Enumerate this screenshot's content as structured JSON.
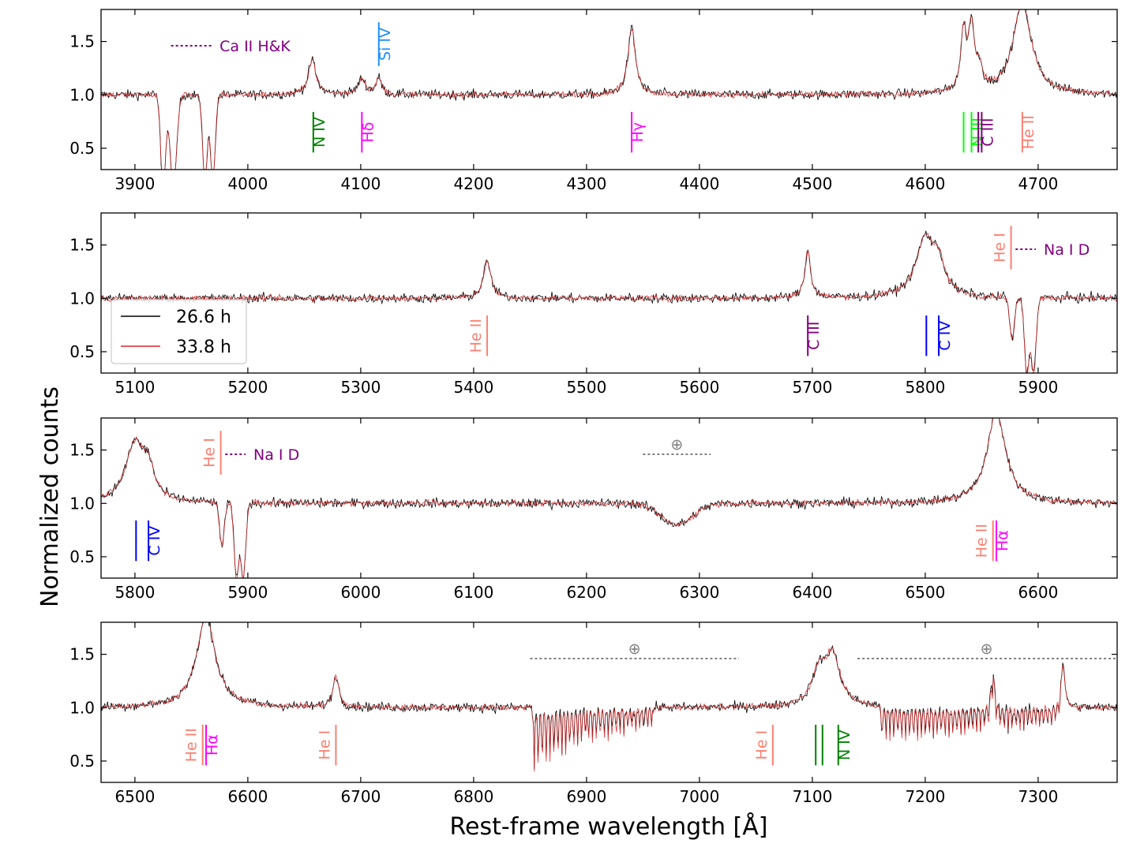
{
  "chart_data": {
    "type": "line",
    "xlabel": "Rest-frame wavelength [Å]",
    "ylabel": "Normalized counts",
    "legend": {
      "placement": "panel-2-left",
      "entries": [
        {
          "name": "26.6 h",
          "color": "#000000"
        },
        {
          "name": "33.8 h",
          "color": "#d62728"
        }
      ]
    },
    "ylim": [
      0.3,
      1.8
    ],
    "yticks": [
      0.5,
      1.0,
      1.5
    ],
    "ytick_labels": [
      "0.5",
      "1.0",
      "1.5"
    ],
    "panels": [
      {
        "xlim": [
          3870,
          4770
        ],
        "xticks": [
          3900,
          4000,
          4100,
          4200,
          4300,
          4400,
          4500,
          4600,
          4700
        ],
        "xtick_labels": [
          "3900",
          "4000",
          "4100",
          "4200",
          "4300",
          "4400",
          "4500",
          "4600",
          "4700"
        ],
        "emission": [
          [
            4057,
            0.33,
            4
          ],
          [
            4101,
            0.15,
            4
          ],
          [
            4116,
            0.15,
            3
          ],
          [
            4340,
            0.62,
            4
          ],
          [
            4634,
            0.55,
            3
          ],
          [
            4641,
            0.6,
            3
          ],
          [
            4648,
            0.2,
            3
          ],
          [
            4686,
            0.85,
            10
          ]
        ],
        "absorption": [
          [
            3925,
            0.9,
            3
          ],
          [
            3934,
            0.9,
            4
          ],
          [
            3962,
            0.8,
            3
          ],
          [
            3969,
            0.8,
            3
          ]
        ],
        "ions": [
          {
            "label": "N IV",
            "color": "#008000",
            "lines": [
              4058
            ],
            "y": [
              0.46,
              0.84
            ]
          },
          {
            "label": "Hδ",
            "color": "#ff00ff",
            "lines": [
              4101
            ],
            "y": [
              0.46,
              0.84
            ]
          },
          {
            "label": "Hγ",
            "color": "#ff00ff",
            "lines": [
              4340
            ],
            "y": [
              0.46,
              0.84
            ]
          },
          {
            "label": "N III",
            "color": "#00ff00",
            "lines": [
              4634,
              4641
            ],
            "y": [
              0.46,
              0.84
            ]
          },
          {
            "label": "C III",
            "color": "#800080",
            "lines": [
              4647,
              4650
            ],
            "y": [
              0.46,
              0.84
            ]
          },
          {
            "label": "He II",
            "color": "#fa8072",
            "lines": [
              4686
            ],
            "y": [
              0.46,
              0.84
            ]
          },
          {
            "label": "Si IV",
            "color": "#1e90ff",
            "lines": [
              4116
            ],
            "y": [
              1.27,
              1.68
            ]
          }
        ],
        "dotted": [
          {
            "label": "Ca II H&K",
            "color": "#800080",
            "x": [
              3932,
              3968
            ],
            "y": 1.46
          }
        ]
      },
      {
        "xlim": [
          5070,
          5970
        ],
        "xticks": [
          5100,
          5200,
          5300,
          5400,
          5500,
          5600,
          5700,
          5800,
          5900
        ],
        "xtick_labels": [
          "5100",
          "5200",
          "5300",
          "5400",
          "5500",
          "5600",
          "5700",
          "5800",
          "5900"
        ],
        "emission": [
          [
            5412,
            0.35,
            4
          ],
          [
            5696,
            0.45,
            3
          ],
          [
            5800,
            0.55,
            10
          ],
          [
            5812,
            0.25,
            6
          ]
        ],
        "absorption": [
          [
            5877,
            0.4,
            3
          ],
          [
            5890,
            0.7,
            3
          ],
          [
            5896,
            0.7,
            3
          ]
        ],
        "ions": [
          {
            "label": "He II",
            "color": "#fa8072",
            "lines": [
              5412
            ],
            "y": [
              0.46,
              0.84
            ]
          },
          {
            "label": "C III",
            "color": "#800080",
            "lines": [
              5696
            ],
            "y": [
              0.46,
              0.84
            ]
          },
          {
            "label": "C IV",
            "color": "#0000ff",
            "lines": [
              5801,
              5812
            ],
            "y": [
              0.46,
              0.84
            ]
          },
          {
            "label": "He I",
            "color": "#fa8072",
            "lines": [
              5876
            ],
            "y": [
              1.27,
              1.68
            ]
          }
        ],
        "dotted": [
          {
            "label": "Na I D",
            "color": "#800080",
            "x": [
              5880,
              5898
            ],
            "y": 1.46
          }
        ]
      },
      {
        "xlim": [
          5770,
          6670
        ],
        "xticks": [
          5800,
          5900,
          6000,
          6100,
          6200,
          6300,
          6400,
          6500,
          6600
        ],
        "xtick_labels": [
          "5800",
          "5900",
          "6000",
          "6100",
          "6200",
          "6300",
          "6400",
          "6500",
          "6600"
        ],
        "emission": [
          [
            5800,
            0.55,
            10
          ],
          [
            5812,
            0.25,
            6
          ],
          [
            6563,
            0.85,
            10
          ]
        ],
        "absorption": [
          [
            5877,
            0.4,
            3
          ],
          [
            5890,
            0.7,
            3
          ],
          [
            5896,
            0.7,
            3
          ],
          [
            6280,
            0.2,
            20
          ]
        ],
        "ions": [
          {
            "label": "C IV",
            "color": "#0000ff",
            "lines": [
              5801,
              5812
            ],
            "y": [
              0.46,
              0.84
            ]
          },
          {
            "label": "He II",
            "color": "#fa8072",
            "lines": [
              6560
            ],
            "y": [
              0.46,
              0.84
            ]
          },
          {
            "label": "Hα",
            "color": "#ff00ff",
            "lines": [
              6563
            ],
            "y": [
              0.46,
              0.84
            ]
          },
          {
            "label": "He I",
            "color": "#fa8072",
            "lines": [
              5876
            ],
            "y": [
              1.27,
              1.68
            ]
          }
        ],
        "dotted": [
          {
            "label": "Na I D",
            "color": "#800080",
            "x": [
              5880,
              5898
            ],
            "y": 1.46
          },
          {
            "label": "⊕",
            "color": "#808080",
            "x": [
              6250,
              6310
            ],
            "y": 1.46
          }
        ]
      },
      {
        "xlim": [
          6470,
          7370
        ],
        "xticks": [
          6500,
          6600,
          6700,
          6800,
          6900,
          7000,
          7100,
          7200,
          7300
        ],
        "xtick_labels": [
          "6500",
          "6600",
          "6700",
          "6800",
          "6900",
          "7000",
          "7100",
          "7200",
          "7300"
        ],
        "emission": [
          [
            6563,
            0.85,
            10
          ],
          [
            6678,
            0.3,
            3
          ],
          [
            7106,
            0.3,
            8
          ],
          [
            7118,
            0.45,
            8
          ],
          [
            7260,
            0.35,
            2
          ],
          [
            7322,
            0.4,
            2
          ]
        ],
        "absorption": [],
        "bands": [
          [
            6852,
            6900,
            0.55
          ],
          [
            6900,
            6960,
            0.3
          ],
          [
            7160,
            7320,
            0.3
          ]
        ],
        "ions": [
          {
            "label": "He II",
            "color": "#fa8072",
            "lines": [
              6560
            ],
            "y": [
              0.46,
              0.84
            ]
          },
          {
            "label": "Hα",
            "color": "#ff00ff",
            "lines": [
              6563
            ],
            "y": [
              0.46,
              0.84
            ]
          },
          {
            "label": "He I",
            "color": "#fa8072",
            "lines": [
              6678
            ],
            "y": [
              0.46,
              0.84
            ]
          },
          {
            "label": "He I",
            "color": "#fa8072",
            "lines": [
              7065
            ],
            "y": [
              0.46,
              0.84
            ]
          },
          {
            "label": "N IV",
            "color": "#008000",
            "lines": [
              7103,
              7109,
              7123
            ],
            "y": [
              0.46,
              0.84
            ]
          }
        ],
        "dotted": [
          {
            "label": "⊕",
            "color": "#808080",
            "x": [
              6850,
              7035
            ],
            "y": 1.46
          },
          {
            "label": "⊕",
            "color": "#808080",
            "x": [
              7140,
              7370
            ],
            "y": 1.46
          }
        ]
      }
    ]
  }
}
